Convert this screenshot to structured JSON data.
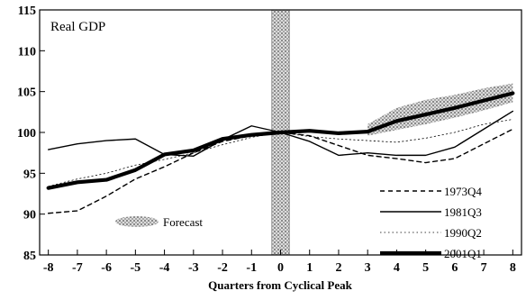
{
  "chart_data": {
    "type": "line",
    "title": "Real GDP",
    "xlabel": "Quarters from Cyclical Peak",
    "ylabel": "",
    "xlim": [
      -8.3,
      8.3
    ],
    "ylim": [
      85,
      115
    ],
    "xticks": [
      -8,
      -7,
      -6,
      -5,
      -4,
      -3,
      -2,
      -1,
      0,
      1,
      2,
      3,
      4,
      5,
      6,
      7,
      8
    ],
    "yticks": [
      85,
      90,
      95,
      100,
      105,
      110,
      115
    ],
    "x": [
      -8,
      -7,
      -6,
      -5,
      -4,
      -3,
      -2,
      -1,
      0,
      1,
      2,
      3,
      4,
      5,
      6,
      7,
      8
    ],
    "series": [
      {
        "name": "1973Q4",
        "style": "dashed",
        "stroke_weight": "medium",
        "values": [
          90.1,
          90.4,
          92.2,
          94.3,
          95.8,
          97.5,
          98.9,
          99.6,
          100.0,
          99.6,
          98.4,
          97.2,
          96.8,
          96.3,
          96.8,
          98.6,
          100.4
        ]
      },
      {
        "name": "1981Q3",
        "style": "solid",
        "stroke_weight": "medium",
        "values": [
          97.9,
          98.6,
          99.0,
          99.2,
          97.3,
          97.1,
          99.1,
          100.8,
          100.0,
          98.9,
          97.2,
          97.5,
          97.2,
          97.2,
          98.2,
          100.4,
          102.6
        ]
      },
      {
        "name": "1990Q2",
        "style": "dotted",
        "stroke_weight": "thin",
        "values": [
          93.4,
          94.3,
          95.0,
          96.0,
          96.7,
          97.5,
          98.5,
          99.4,
          100.0,
          99.5,
          99.2,
          99.0,
          98.8,
          99.3,
          100.0,
          101.0,
          101.6
        ]
      },
      {
        "name": "2001Q1",
        "style": "solid",
        "stroke_weight": "thick",
        "values": [
          93.2,
          93.9,
          94.2,
          95.4,
          97.3,
          97.8,
          99.2,
          99.7,
          100.0,
          100.2,
          99.9,
          100.1,
          101.4,
          102.2,
          103.0,
          103.9,
          104.8
        ]
      }
    ],
    "forecast_band": {
      "x": [
        3,
        4,
        5,
        6,
        7,
        8
      ],
      "lower": [
        99.6,
        100.3,
        101.0,
        101.8,
        102.7,
        103.7
      ],
      "upper": [
        101.0,
        103.0,
        104.0,
        104.6,
        105.4,
        106.0
      ]
    },
    "recession_band": {
      "x_from": -0.3,
      "x_to": 0.3
    },
    "legend": {
      "placement": "bottom-right",
      "forecast_label": "Forecast",
      "forecast_placement": "bottom-left"
    },
    "grid": false,
    "colors": {
      "lines": "#000000",
      "shading": "#888888",
      "background": "#ffffff"
    }
  }
}
